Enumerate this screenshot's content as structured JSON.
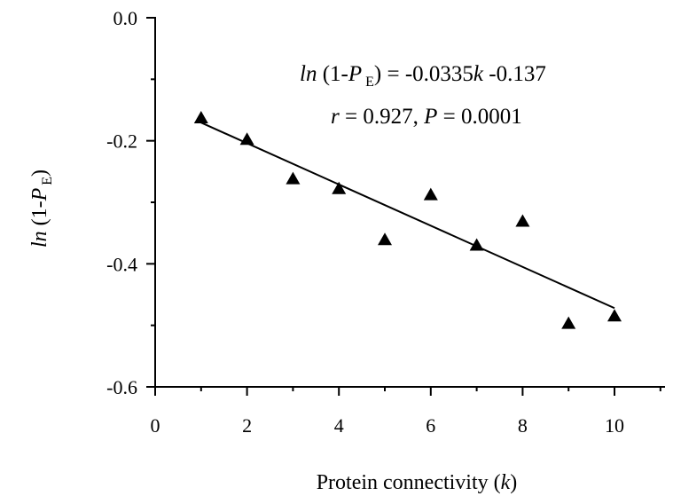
{
  "chart_data": {
    "type": "scatter",
    "xlabel": {
      "prefix": "Protein connectivity (",
      "symbol": "k",
      "suffix": ")"
    },
    "ylabel": {
      "fn": "ln",
      "open": " (1-",
      "symbol": "P",
      "subscript": "E",
      "close": ")"
    },
    "xlim": [
      0,
      11.1
    ],
    "ylim": [
      -0.6,
      0.0
    ],
    "x_ticks": [
      0,
      2,
      4,
      6,
      8,
      10
    ],
    "x_tick_labels": [
      "0",
      "2",
      "4",
      "6",
      "8",
      "10"
    ],
    "y_ticks": [
      0.0,
      -0.2,
      -0.4,
      -0.6
    ],
    "y_tick_labels": [
      "0.0",
      "-0.2",
      "-0.4",
      "-0.6"
    ],
    "grid": false,
    "marker": "triangle",
    "series": [
      {
        "points": [
          {
            "x": 1,
            "y": -0.163
          },
          {
            "x": 2,
            "y": -0.198
          },
          {
            "x": 3,
            "y": -0.262
          },
          {
            "x": 4,
            "y": -0.278
          },
          {
            "x": 5,
            "y": -0.361
          },
          {
            "x": 6,
            "y": -0.288
          },
          {
            "x": 7,
            "y": -0.37
          },
          {
            "x": 8,
            "y": -0.331
          },
          {
            "x": 9,
            "y": -0.497
          },
          {
            "x": 10,
            "y": -0.485
          }
        ]
      }
    ],
    "regression": {
      "slope": -0.0335,
      "intercept": -0.137,
      "x_range": [
        1,
        10
      ]
    },
    "annotation": {
      "line1": {
        "fn": "ln",
        "open": " (1-",
        "symbol": "P",
        "subscript": "E",
        "rest": ") = -0.0335",
        "k": "k",
        "tail": " -0.137"
      },
      "line2": {
        "r": "r",
        "r_value": " = 0.927,  ",
        "p": "P",
        "p_value": " = 0.0001"
      }
    }
  }
}
